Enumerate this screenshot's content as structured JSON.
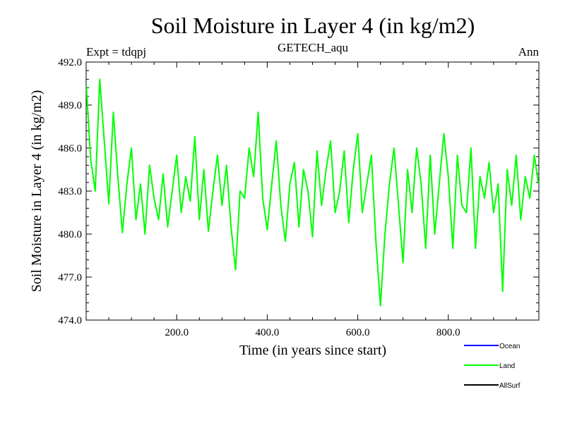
{
  "chart_data": {
    "type": "line",
    "title": "Soil Moisture in Layer 4 (in kg/m2)",
    "subtitle": "GETECH_aqu",
    "left_annotation": "Expt = tdqpj",
    "right_annotation": "Ann",
    "xlabel": "Time (in years since start)",
    "ylabel": "Soil Moisture in Layer 4 (in kg/m2)",
    "xlim": [
      0,
      1000
    ],
    "ylim": [
      474.0,
      492.0
    ],
    "x_ticks": [
      200,
      400,
      600,
      800
    ],
    "x_tick_labels": [
      "200.0",
      "400.0",
      "600.0",
      "800.0"
    ],
    "y_ticks": [
      474,
      477,
      480,
      483,
      486,
      489,
      492
    ],
    "y_tick_labels": [
      "474.0",
      "477.0",
      "480.0",
      "483.0",
      "486.0",
      "489.0",
      "492.0"
    ],
    "legend": {
      "placement": "bottom-right",
      "entries": [
        {
          "label": "Ocean",
          "color": "#0000ff"
        },
        {
          "label": "Land",
          "color": "#00ff00"
        },
        {
          "label": "AllSurf",
          "color": "#000000"
        }
      ]
    },
    "series": [
      {
        "name": "Land",
        "color": "#00ff00",
        "x": [
          0,
          10,
          20,
          30,
          40,
          50,
          60,
          70,
          80,
          90,
          100,
          110,
          120,
          130,
          140,
          150,
          160,
          170,
          180,
          190,
          200,
          210,
          220,
          230,
          240,
          250,
          260,
          270,
          280,
          290,
          300,
          310,
          320,
          330,
          340,
          350,
          360,
          370,
          380,
          390,
          400,
          410,
          420,
          430,
          440,
          450,
          460,
          470,
          480,
          490,
          500,
          510,
          520,
          530,
          540,
          550,
          560,
          570,
          580,
          590,
          600,
          610,
          620,
          630,
          640,
          650,
          660,
          670,
          680,
          690,
          700,
          710,
          720,
          730,
          740,
          750,
          760,
          770,
          780,
          790,
          800,
          810,
          820,
          830,
          840,
          850,
          860,
          870,
          880,
          890,
          900,
          910,
          920,
          930,
          940,
          950,
          960,
          970,
          980,
          990,
          999
        ],
        "y": [
          490.5,
          485.2,
          483.0,
          490.8,
          486.5,
          482.1,
          488.5,
          484.0,
          480.1,
          483.5,
          486.0,
          481.0,
          483.5,
          480.0,
          484.8,
          482.5,
          481.0,
          484.2,
          480.5,
          483.0,
          485.5,
          481.5,
          484.0,
          482.3,
          486.8,
          481.0,
          484.5,
          480.2,
          483.0,
          485.5,
          482.0,
          484.8,
          480.5,
          477.5,
          483.0,
          482.5,
          486.0,
          484.0,
          488.5,
          482.5,
          480.3,
          483.5,
          486.5,
          482.0,
          479.5,
          483.5,
          485.0,
          480.5,
          484.5,
          483.0,
          479.8,
          485.8,
          482.0,
          484.5,
          486.5,
          481.5,
          483.0,
          485.8,
          480.8,
          484.5,
          487.0,
          481.5,
          483.5,
          485.5,
          479.5,
          475.0,
          480.0,
          483.5,
          486.0,
          482.0,
          478.0,
          484.5,
          481.5,
          486.0,
          483.5,
          479.0,
          485.5,
          480.0,
          483.5,
          487.0,
          484.0,
          479.0,
          485.5,
          482.0,
          481.5,
          486.0,
          479.0,
          484.0,
          482.5,
          485.0,
          481.5,
          483.5,
          476.0,
          484.5,
          482.0,
          485.5,
          481.0,
          484.0,
          482.5,
          485.5,
          483.5
        ]
      }
    ]
  }
}
